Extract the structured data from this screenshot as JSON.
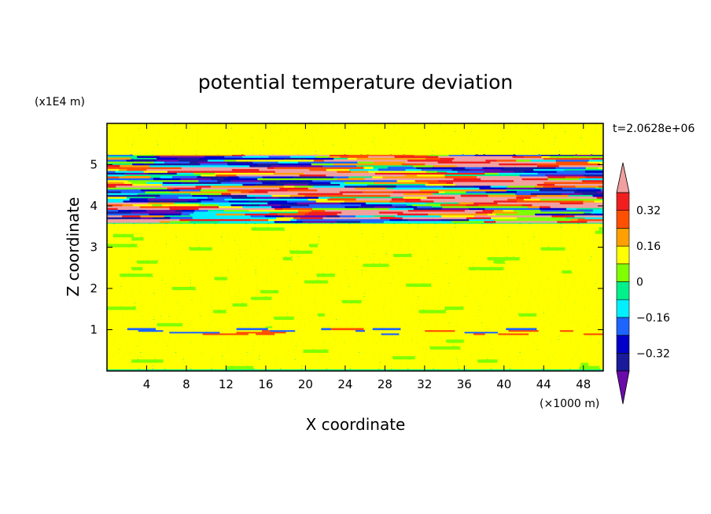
{
  "chart_data": {
    "type": "heatmap",
    "title": "potential temperature deviation",
    "xlabel": "X coordinate",
    "ylabel": "Z coordinate",
    "x_unit_label": "(×1000 m)",
    "y_unit_label": "(x1E4 m)",
    "time_label": "t=2.0628e+06",
    "xlim": [
      0,
      50
    ],
    "ylim": [
      0,
      6
    ],
    "x_ticks": [
      4,
      8,
      12,
      16,
      20,
      24,
      28,
      32,
      36,
      40,
      44,
      48
    ],
    "y_ticks": [
      1,
      2,
      3,
      4,
      5
    ],
    "colorbar": {
      "levels": [
        -0.48,
        -0.4,
        -0.32,
        -0.24,
        -0.16,
        -0.08,
        0,
        0.08,
        0.16,
        0.24,
        0.32,
        0.4,
        0.48
      ],
      "tick_values": [
        -0.32,
        -0.16,
        0,
        0.16,
        0.32
      ],
      "tick_labels": [
        "−0.32",
        "−0.16",
        "0",
        "0.16",
        "0.32"
      ],
      "colors": [
        "#6a0aab",
        "#1a1a9a",
        "#0000c8",
        "#1e64ff",
        "#00f0ff",
        "#00f08c",
        "#80ff00",
        "#ffff00",
        "#ffa000",
        "#ff5000",
        "#f01e1e",
        "#f0a0a0"
      ],
      "extend": "both"
    },
    "field_description": {
      "background_level": 0,
      "layers": [
        {
          "z_range": [
            0.9,
            1.0
          ],
          "character": "thin band of alternating deviations near the ground layer"
        },
        {
          "z_range": [
            3.6,
            5.2
          ],
          "character": "strong horizontal stripes alternating from −0.4 to +0.4"
        },
        {
          "z_range": [
            0,
            3.6
          ],
          "character": "weak wavy deviations between −0.08 and +0.08"
        }
      ]
    }
  }
}
